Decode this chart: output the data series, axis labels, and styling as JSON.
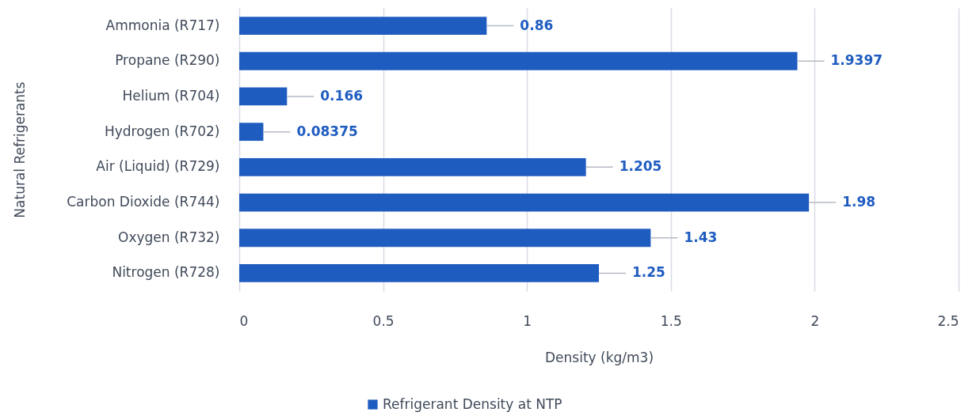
{
  "chart_data": {
    "type": "bar",
    "orientation": "horizontal",
    "categories": [
      "Ammonia (R717)",
      "Propane (R290)",
      "Helium (R704)",
      "Hydrogen (R702)",
      "Air (Liquid) (R729)",
      "Carbon Dioxide (R744)",
      "Oxygen (R732)",
      "Nitrogen (R728)"
    ],
    "series": [
      {
        "name": "Refrigerant Density at NTP",
        "color": "#1f5cc0",
        "values": [
          0.86,
          1.9397,
          0.166,
          0.08375,
          1.205,
          1.98,
          1.43,
          1.25
        ]
      }
    ],
    "xlabel": "Density (kg/m3)",
    "ylabel": "Natural Refrigerants",
    "xlim": [
      0,
      2.5
    ],
    "xticks": [
      0,
      0.5,
      1,
      1.5,
      2,
      2.5
    ],
    "grid": "x",
    "legend": "bottom",
    "data_labels": true
  }
}
